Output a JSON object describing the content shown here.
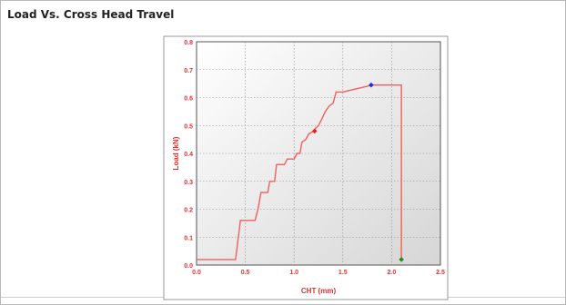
{
  "panel": {
    "title": "Load Vs. Cross Head Travel"
  },
  "chart_data": {
    "type": "line",
    "title": "",
    "xlabel": "CHT (mm)",
    "ylabel": "Load (kN)",
    "xlim": [
      0.0,
      2.5
    ],
    "ylim": [
      0.0,
      0.8
    ],
    "x_ticks": [
      "0.0",
      "0.5",
      "1.0",
      "1.5",
      "2.0",
      "2.5"
    ],
    "y_ticks": [
      "0.0",
      "0.1",
      "0.2",
      "0.3",
      "0.4",
      "0.5",
      "0.6",
      "0.7",
      "0.8"
    ],
    "grid": true,
    "background": "gradient white to gray",
    "series": [
      {
        "color": "#f06060",
        "points": [
          [
            0.0,
            0.02
          ],
          [
            0.4,
            0.02
          ],
          [
            0.45,
            0.16
          ],
          [
            0.6,
            0.16
          ],
          [
            0.63,
            0.2
          ],
          [
            0.66,
            0.26
          ],
          [
            0.73,
            0.26
          ],
          [
            0.75,
            0.3
          ],
          [
            0.8,
            0.3
          ],
          [
            0.82,
            0.36
          ],
          [
            0.9,
            0.36
          ],
          [
            0.93,
            0.38
          ],
          [
            1.0,
            0.38
          ],
          [
            1.03,
            0.4
          ],
          [
            1.06,
            0.4
          ],
          [
            1.08,
            0.44
          ],
          [
            1.12,
            0.45
          ],
          [
            1.15,
            0.47
          ],
          [
            1.2,
            0.48
          ],
          [
            1.22,
            0.49
          ],
          [
            1.25,
            0.5
          ],
          [
            1.28,
            0.52
          ],
          [
            1.32,
            0.55
          ],
          [
            1.36,
            0.57
          ],
          [
            1.4,
            0.58
          ],
          [
            1.43,
            0.62
          ],
          [
            1.5,
            0.62
          ],
          [
            1.8,
            0.645
          ],
          [
            2.1,
            0.645
          ],
          [
            2.1,
            0.02
          ]
        ]
      }
    ],
    "markers": [
      {
        "x": 1.21,
        "y": 0.48,
        "color": "#e02020"
      },
      {
        "x": 1.79,
        "y": 0.645,
        "color": "#2a2ae0"
      },
      {
        "x": 2.1,
        "y": 0.02,
        "color": "#1f8f1f"
      }
    ]
  }
}
